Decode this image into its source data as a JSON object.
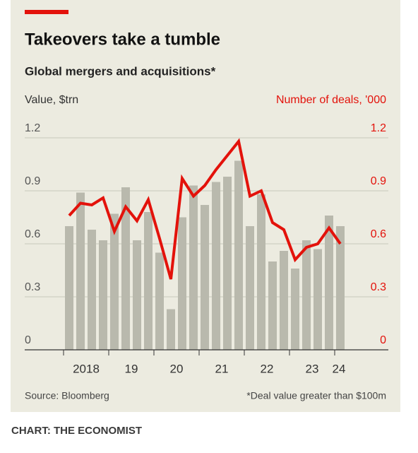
{
  "chart_data": {
    "type": "bar-line",
    "title": "Takeovers take a tumble",
    "subtitle": "Global mergers and acquisitions*",
    "y_label": "Value, $trn",
    "y2_label": "Number of deals, '000",
    "source": "Source: Bloomberg",
    "note": "*Deal value greater than $100m",
    "credit": "CHART: THE ECONOMIST",
    "categories": [
      null,
      "2018",
      null,
      null,
      null,
      "19",
      null,
      null,
      null,
      "20",
      null,
      null,
      null,
      "21",
      null,
      null,
      null,
      "22",
      null,
      null,
      null,
      "23",
      null,
      null,
      "24"
    ],
    "ylim": [
      0,
      1.2
    ],
    "yticks": [
      0,
      0.3,
      0.6,
      0.9,
      1.2
    ],
    "y2lim": [
      0,
      1.2
    ],
    "y2ticks": [
      0,
      0.3,
      0.6,
      0.9,
      1.2
    ],
    "grid": true,
    "series": [
      {
        "name": "Value",
        "type": "bar",
        "color": "#b9b9ad",
        "values": [
          0.7,
          0.89,
          0.68,
          0.62,
          0.77,
          0.92,
          0.62,
          0.78,
          0.55,
          0.23,
          0.75,
          0.93,
          0.82,
          0.95,
          0.98,
          1.07,
          0.7,
          0.88,
          0.5,
          0.56,
          0.46,
          0.62,
          0.57,
          0.76,
          0.7
        ]
      },
      {
        "name": "Number of deals",
        "type": "line",
        "axis": "y2",
        "color": "#e3120b",
        "values": [
          0.76,
          0.83,
          0.82,
          0.86,
          0.67,
          0.81,
          0.73,
          0.85,
          0.63,
          0.4,
          0.97,
          0.87,
          0.93,
          1.02,
          1.1,
          1.18,
          0.87,
          0.9,
          0.72,
          0.68,
          0.51,
          0.58,
          0.6,
          0.69,
          0.6
        ]
      }
    ]
  }
}
